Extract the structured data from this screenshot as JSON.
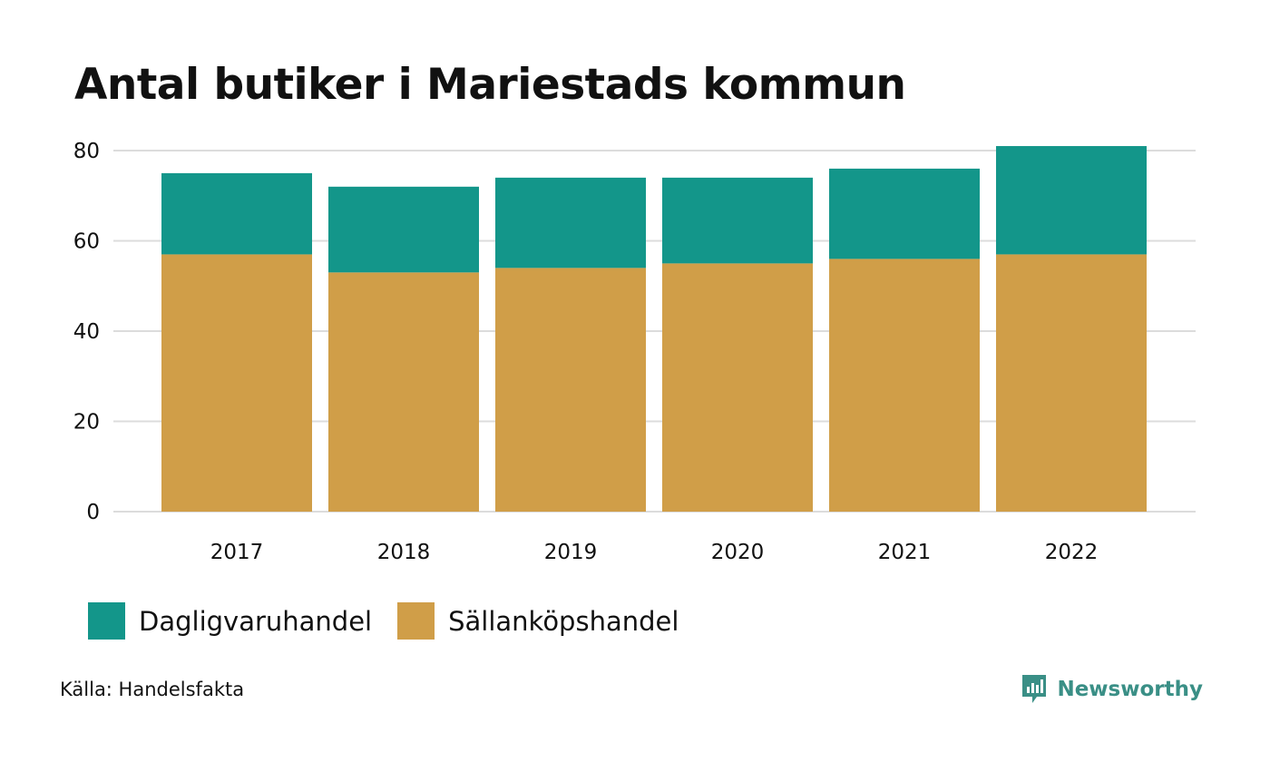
{
  "chart_data": {
    "type": "bar",
    "stacked": true,
    "title": "Antal butiker i Mariestads kommun",
    "categories": [
      "2017",
      "2018",
      "2019",
      "2020",
      "2021",
      "2022"
    ],
    "series": [
      {
        "name": "Sällanköpshandel",
        "color": "#d09e48",
        "values": [
          57,
          53,
          54,
          55,
          56,
          57
        ]
      },
      {
        "name": "Dagligvaruhandel",
        "color": "#13968a",
        "values": [
          18,
          19,
          20,
          19,
          20,
          24
        ]
      }
    ],
    "ylim": [
      0,
      80
    ],
    "yticks": [
      0,
      20,
      40,
      60,
      80
    ],
    "grid": true,
    "legend_placement": "bottom-left"
  },
  "legend": [
    {
      "label": "Dagligvaruhandel",
      "color": "#13968a"
    },
    {
      "label": "Sällanköpshandel",
      "color": "#d09e48"
    }
  ],
  "source": "Källa: Handelsfakta",
  "brand": {
    "name": "Newsworthy",
    "icon": "newsworthy-logo-icon",
    "color": "#3a8f86"
  }
}
